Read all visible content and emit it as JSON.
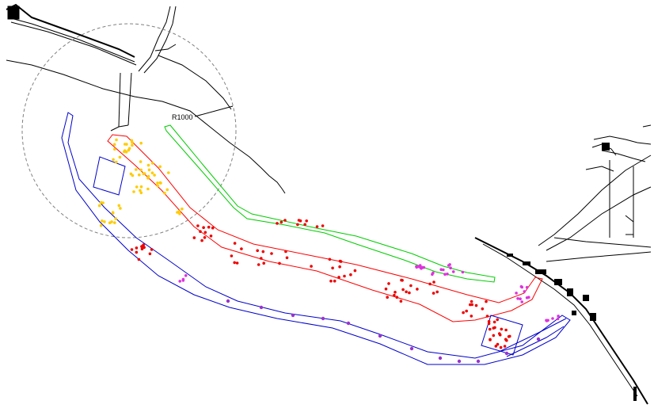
{
  "map": {
    "radius_label": "R1000",
    "colors": {
      "coastline": "#000000",
      "radius_circle": "#808080",
      "red_route": "#ff0000",
      "blue_route": "#0000cc",
      "green_route": "#00cc00",
      "yellow_points": "#ffcc00",
      "red_points": "#ee0000",
      "magenta_points": "#dd33dd",
      "purple_points": "#9933cc"
    }
  }
}
